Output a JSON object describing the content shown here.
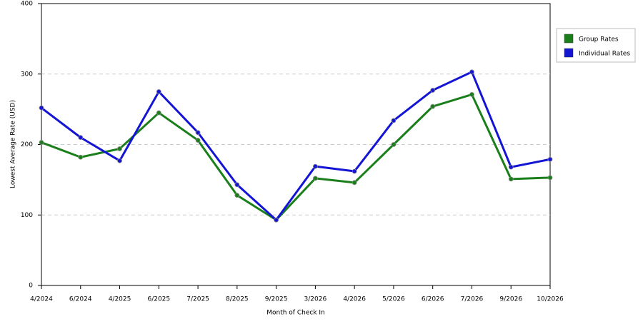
{
  "chart_data": {
    "type": "line",
    "x_label": "Month of Check In",
    "y_label": "Lowest Average Rate (USD)",
    "categories": [
      "4/2024",
      "6/2024",
      "4/2025",
      "6/2025",
      "7/2025",
      "8/2025",
      "9/2025",
      "3/2026",
      "4/2026",
      "5/2026",
      "6/2026",
      "7/2026",
      "9/2026",
      "10/2026"
    ],
    "series": [
      {
        "name": "Group Rates",
        "color": "#1a7f1a",
        "values": [
          203,
          182,
          194,
          245,
          206,
          128,
          93,
          152,
          146,
          200,
          254,
          271,
          151,
          153
        ]
      },
      {
        "name": "Individual Rates",
        "color": "#1414d4",
        "values": [
          252,
          210,
          177,
          275,
          217,
          143,
          93,
          169,
          162,
          234,
          277,
          303,
          168,
          179
        ]
      }
    ],
    "ylim": [
      0,
      400
    ],
    "yticks": [
      0,
      100,
      200,
      300,
      400
    ],
    "grid": true
  }
}
